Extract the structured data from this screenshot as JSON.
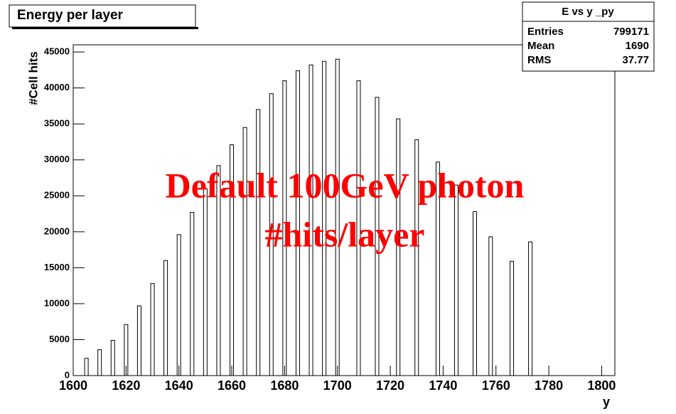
{
  "chart_data": {
    "type": "bar",
    "title": "Energy per layer",
    "x_label": "y",
    "y_label": "#Cell hits",
    "x": [
      1605,
      1610,
      1615,
      1620,
      1625,
      1630,
      1635,
      1640,
      1645,
      1650,
      1655,
      1660,
      1665,
      1670,
      1675,
      1680,
      1685,
      1690,
      1695,
      1700,
      1708,
      1715,
      1723,
      1730,
      1738,
      1745,
      1752,
      1758,
      1766,
      1773
    ],
    "values": [
      2400,
      3600,
      4900,
      7100,
      9700,
      12800,
      16000,
      19600,
      22700,
      26000,
      29200,
      32100,
      34500,
      37000,
      39200,
      41000,
      42400,
      43200,
      43700,
      44000,
      41000,
      38700,
      35700,
      32800,
      29700,
      26500,
      22800,
      19300,
      15900,
      18600
    ],
    "color": "#ffffff",
    "xlim": [
      1600,
      1805
    ],
    "xticks": [
      1600,
      1620,
      1640,
      1660,
      1680,
      1700,
      1720,
      1740,
      1760,
      1780,
      1800
    ],
    "ylim": [
      0,
      46000
    ],
    "yticks": [
      0,
      5000,
      10000,
      15000,
      20000,
      25000,
      30000,
      35000,
      40000,
      45000
    ],
    "stats": {
      "title": "E vs y _py",
      "rows": [
        [
          "Entries",
          799171
        ],
        [
          "Mean",
          1690
        ],
        [
          "RMS",
          37.77
        ]
      ]
    },
    "annotations": [
      "Default 100GeV photon",
      "#hits/layer"
    ]
  }
}
